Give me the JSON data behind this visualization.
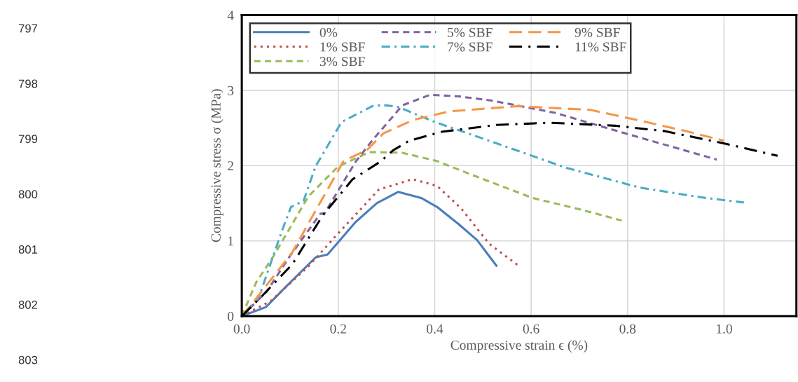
{
  "chart_data": {
    "type": "line",
    "xlabel": "Compressive strain ϵ (%)",
    "ylabel": "Compressive stress σ (MPa)",
    "xlim": [
      0,
      1.15
    ],
    "xticks": [
      {
        "value": 0,
        "label": "0.0"
      },
      {
        "value": 0.2,
        "label": "0.2"
      },
      {
        "value": 0.4,
        "label": "0.4"
      },
      {
        "value": 0.6,
        "label": "0.6"
      },
      {
        "value": 0.8,
        "label": "0.8"
      },
      {
        "value": 1.0,
        "label": "1.0"
      }
    ],
    "ylim": [
      0,
      4
    ],
    "yticks": [
      0,
      1,
      2,
      3,
      4
    ],
    "grid": true,
    "legend": "top left",
    "marker": "none",
    "annotations": [
      "797",
      "798",
      "799",
      "800",
      "801",
      "802",
      "803"
    ],
    "series": [
      {
        "name": "0%",
        "color": "#4a7ebb",
        "line_style": "solid",
        "x": [
          0,
          0.05,
          0.09,
          0.153,
          0.178,
          0.236,
          0.28,
          0.324,
          0.372,
          0.405,
          0.45,
          0.488,
          0.515,
          0.528
        ],
        "values": [
          0,
          0.12,
          0.38,
          0.78,
          0.82,
          1.25,
          1.5,
          1.65,
          1.57,
          1.45,
          1.22,
          1.01,
          0.78,
          0.67
        ]
      },
      {
        "name": "1% SBF",
        "color": "#c0504d",
        "line_style": "dotted",
        "x": [
          0,
          0.06,
          0.138,
          0.2,
          0.284,
          0.354,
          0.405,
          0.455,
          0.513,
          0.576
        ],
        "values": [
          0,
          0.2,
          0.66,
          1.1,
          1.68,
          1.82,
          1.73,
          1.43,
          0.96,
          0.66
        ]
      },
      {
        "name": "3% SBF",
        "color": "#9bbb59",
        "line_style": "dashed",
        "x": [
          0,
          0.03,
          0.066,
          0.138,
          0.2,
          0.265,
          0.333,
          0.405,
          0.472,
          0.603,
          0.7,
          0.788
        ],
        "values": [
          0,
          0.45,
          0.8,
          1.59,
          1.99,
          2.18,
          2.17,
          2.06,
          1.89,
          1.57,
          1.42,
          1.27
        ]
      },
      {
        "name": "5% SBF",
        "color": "#8064a2",
        "line_style": "dashed",
        "x": [
          0,
          0.051,
          0.1,
          0.163,
          0.172,
          0.236,
          0.27,
          0.333,
          0.39,
          0.45,
          0.522,
          0.65,
          0.805,
          0.985
        ],
        "values": [
          0,
          0.32,
          0.8,
          1.36,
          1.37,
          2.05,
          2.33,
          2.8,
          2.94,
          2.92,
          2.86,
          2.7,
          2.41,
          2.08
        ]
      },
      {
        "name": "7% SBF",
        "color": "#4bacc6",
        "line_style": "dashdot",
        "x": [
          0,
          0.036,
          0.083,
          0.102,
          0.128,
          0.153,
          0.207,
          0.274,
          0.3,
          0.324,
          0.4,
          0.522,
          0.673,
          0.824,
          0.95,
          1.041
        ],
        "values": [
          0,
          0.26,
          1.13,
          1.45,
          1.53,
          1.99,
          2.58,
          2.8,
          2.8,
          2.78,
          2.58,
          2.31,
          1.97,
          1.71,
          1.58,
          1.51
        ]
      },
      {
        "name": "9% SBF",
        "color": "#f79646",
        "line_style": "longdash",
        "x": [
          0,
          0.022,
          0.105,
          0.153,
          0.211,
          0.26,
          0.294,
          0.357,
          0.43,
          0.573,
          0.723,
          0.824,
          0.92,
          1.0
        ],
        "values": [
          0,
          0.17,
          0.85,
          1.4,
          2.06,
          2.21,
          2.43,
          2.61,
          2.72,
          2.79,
          2.74,
          2.6,
          2.46,
          2.33
        ]
      },
      {
        "name": "11% SBF",
        "color": "#000000",
        "line_style": "longdashdot",
        "x": [
          0,
          0.041,
          0.105,
          0.168,
          0.23,
          0.26,
          0.289,
          0.313,
          0.347,
          0.415,
          0.528,
          0.638,
          0.774,
          0.875,
          0.996,
          1.111
        ],
        "values": [
          0,
          0.26,
          0.69,
          1.34,
          1.82,
          1.94,
          2.06,
          2.2,
          2.33,
          2.45,
          2.54,
          2.57,
          2.53,
          2.46,
          2.3,
          2.13
        ]
      }
    ]
  }
}
